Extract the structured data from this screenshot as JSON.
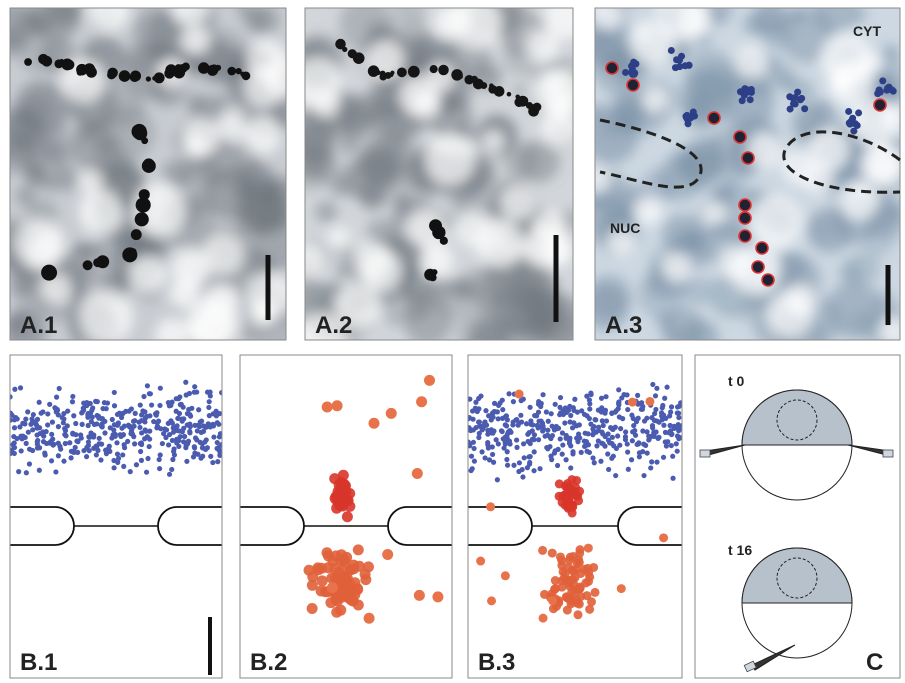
{
  "panels": [
    {
      "label": "A.1"
    },
    {
      "label": "A.2"
    },
    {
      "label": "A.3"
    },
    {
      "label": "B.1"
    },
    {
      "label": "B.2"
    },
    {
      "label": "B.3"
    },
    {
      "label": "C"
    }
  ],
  "annotations": {
    "cyt": "CYT",
    "nuc": "NUC",
    "t0": "t 0",
    "t16": "t 16"
  }
}
